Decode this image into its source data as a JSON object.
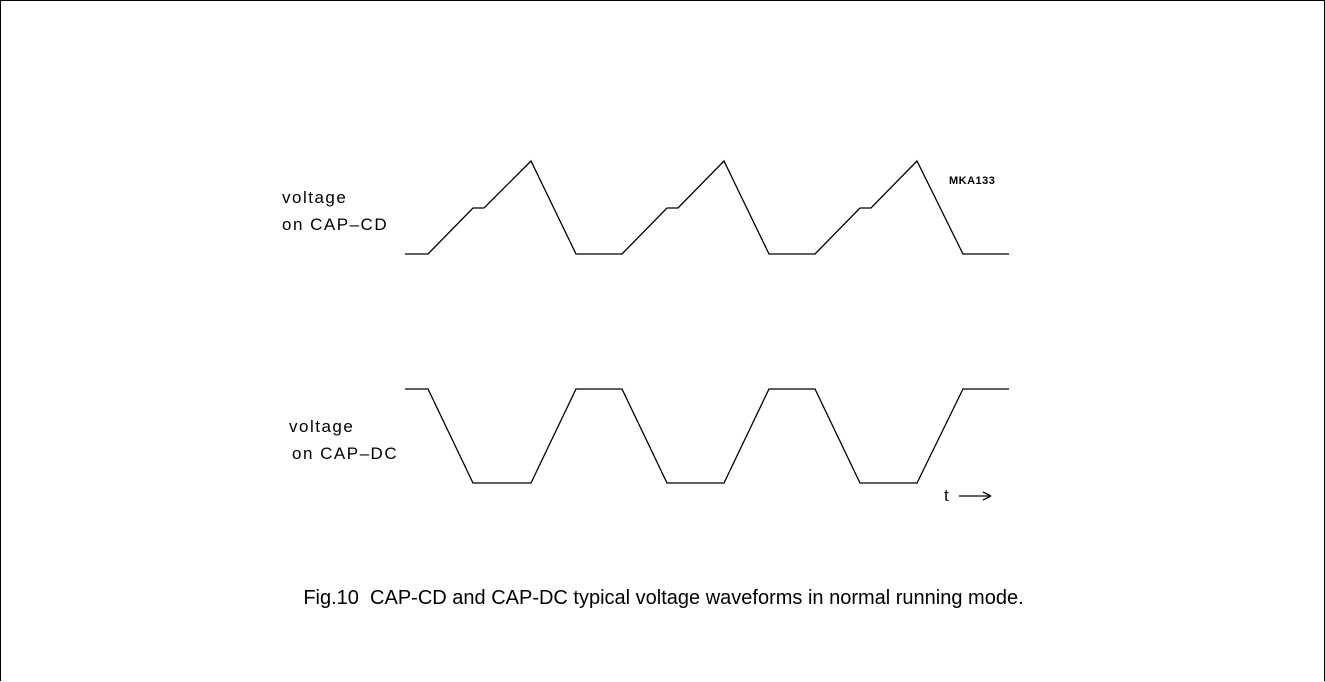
{
  "figure": {
    "code": "MKA133",
    "caption": "Fig.10  CAP-CD and CAP-DC typical voltage waveforms in normal running mode."
  },
  "signals": [
    {
      "label_line1": "voltage",
      "label_line2": "on CAP–CD"
    },
    {
      "label_line1": "voltage",
      "label_line2": "on CAP–DC"
    }
  ],
  "time_axis": {
    "label": "t"
  },
  "colors": {
    "ink": "#000000",
    "background": "#ffffff"
  }
}
